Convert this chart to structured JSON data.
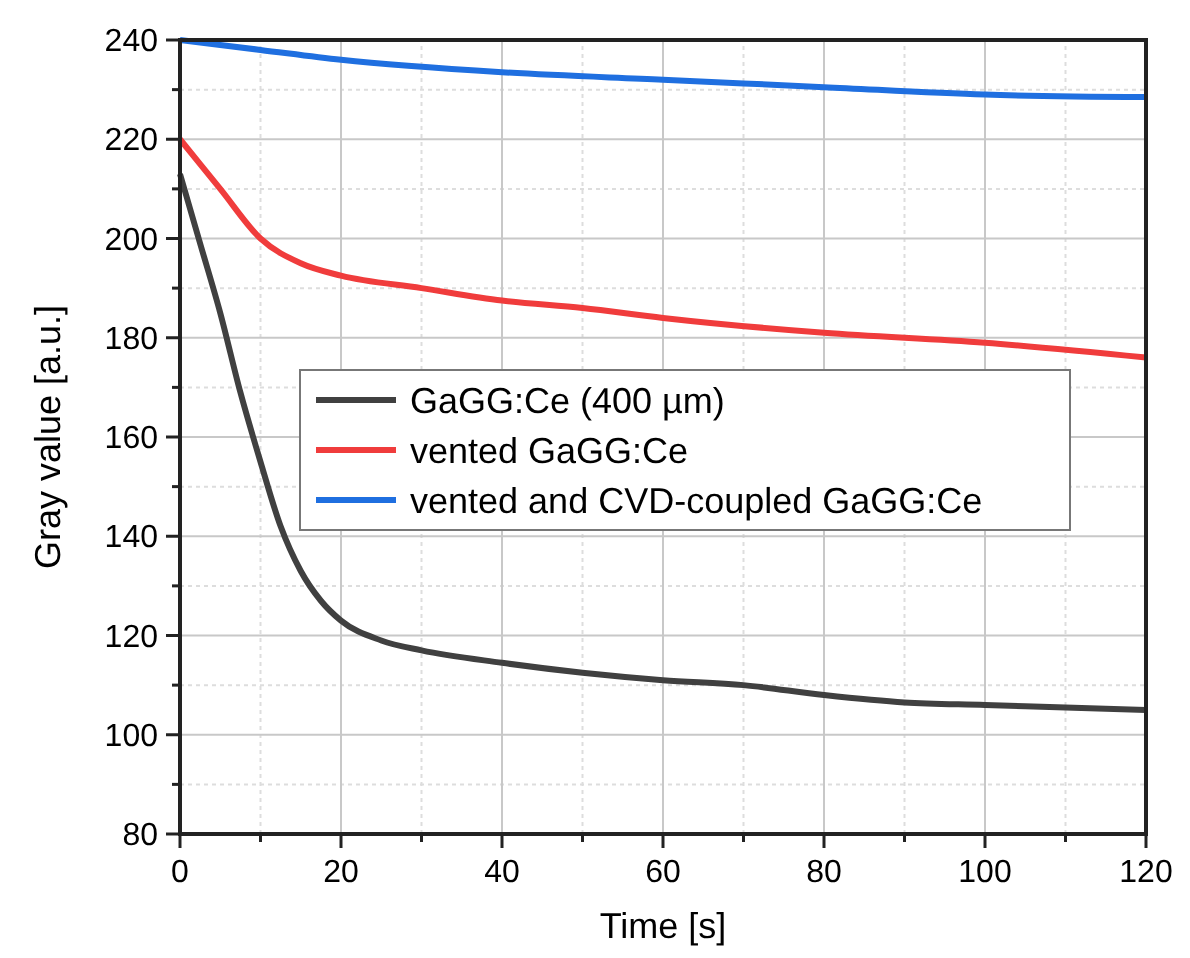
{
  "chart_data": {
    "type": "line",
    "xlabel": "Time [s]",
    "ylabel": "Gray value [a.u.]",
    "xlim": [
      0,
      120
    ],
    "ylim": [
      80,
      240
    ],
    "xticks": [
      0,
      20,
      40,
      60,
      80,
      100,
      120
    ],
    "yticks": [
      80,
      100,
      120,
      140,
      160,
      180,
      200,
      220,
      240
    ],
    "grid": true,
    "legend": "center",
    "line_style": "solid",
    "marker": "none",
    "series": [
      {
        "name": "GaGG:Ce (400 µm)",
        "color": "#404040",
        "x": [
          0,
          2.5,
          5,
          7.5,
          10,
          12.5,
          15,
          17.5,
          20,
          25,
          30,
          40,
          50,
          60,
          70,
          80,
          90,
          100,
          110,
          120
        ],
        "values": [
          213,
          199,
          185,
          169,
          155,
          142,
          133,
          127,
          123,
          119,
          117,
          114.5,
          112.5,
          111,
          110,
          108,
          106.5,
          106,
          105.5,
          105
        ]
      },
      {
        "name": "vented GaGG:Ce",
        "color": "#f03c3c",
        "x": [
          0,
          5,
          10,
          15,
          20,
          30,
          40,
          50,
          60,
          80,
          100,
          120
        ],
        "values": [
          220,
          210,
          200,
          195,
          192.5,
          190,
          187.5,
          186,
          184,
          181,
          179,
          176
        ]
      },
      {
        "name": "vented and CVD-coupled GaGG:Ce",
        "color": "#1f6fe0",
        "x": [
          0,
          10,
          20,
          40,
          60,
          80,
          100,
          120
        ],
        "values": [
          240,
          238,
          236,
          233.5,
          232,
          230.5,
          229,
          228.5
        ]
      }
    ]
  }
}
